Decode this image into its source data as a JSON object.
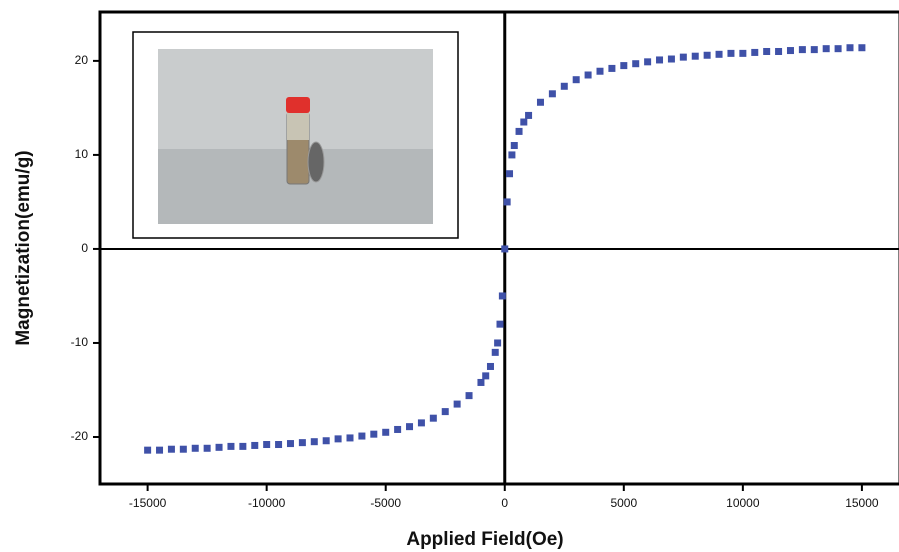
{
  "chart_data": {
    "type": "scatter",
    "x_label": "Applied Field(Oe)",
    "y_label": "Magnetization(emu/g)",
    "color": "#3f51a8",
    "xlim": [
      -17000,
      16600
    ],
    "ylim": [
      -25,
      25.2
    ],
    "xticks": [
      -15000,
      -10000,
      -5000,
      0,
      5000,
      10000,
      15000
    ],
    "yticks": [
      -20,
      -10,
      0,
      10,
      20
    ],
    "x": [
      -15000,
      -14500,
      -14000,
      -13500,
      -13000,
      -12500,
      -12000,
      -11500,
      -11000,
      -10500,
      -10000,
      -9500,
      -9000,
      -8500,
      -8000,
      -7500,
      -7000,
      -6500,
      -6000,
      -5500,
      -5000,
      -4500,
      -4000,
      -3500,
      -3000,
      -2500,
      -2000,
      -1500,
      -1000,
      -800,
      -600,
      -400,
      -300,
      -200,
      -100,
      0,
      100,
      200,
      300,
      400,
      600,
      800,
      1000,
      1500,
      2000,
      2500,
      3000,
      3500,
      4000,
      4500,
      5000,
      5500,
      6000,
      6500,
      7000,
      7500,
      8000,
      8500,
      9000,
      9500,
      10000,
      10500,
      11000,
      11500,
      12000,
      12500,
      13000,
      13500,
      14000,
      14500,
      15000
    ],
    "values": [
      -21.4,
      -21.4,
      -21.3,
      -21.3,
      -21.2,
      -21.2,
      -21.1,
      -21.0,
      -21.0,
      -20.9,
      -20.8,
      -20.8,
      -20.7,
      -20.6,
      -20.5,
      -20.4,
      -20.2,
      -20.1,
      -19.9,
      -19.7,
      -19.5,
      -19.2,
      -18.9,
      -18.5,
      -18.0,
      -17.3,
      -16.5,
      -15.6,
      -14.2,
      -13.5,
      -12.5,
      -11,
      -10,
      -8,
      -5,
      0,
      5,
      8,
      10,
      11,
      12.5,
      13.5,
      14.2,
      15.6,
      16.5,
      17.3,
      18.0,
      18.5,
      18.9,
      19.2,
      19.5,
      19.7,
      19.9,
      20.1,
      20.2,
      20.4,
      20.5,
      20.6,
      20.7,
      20.8,
      20.8,
      20.9,
      21.0,
      21.0,
      21.1,
      21.2,
      21.2,
      21.3,
      21.3,
      21.4,
      21.4
    ]
  }
}
